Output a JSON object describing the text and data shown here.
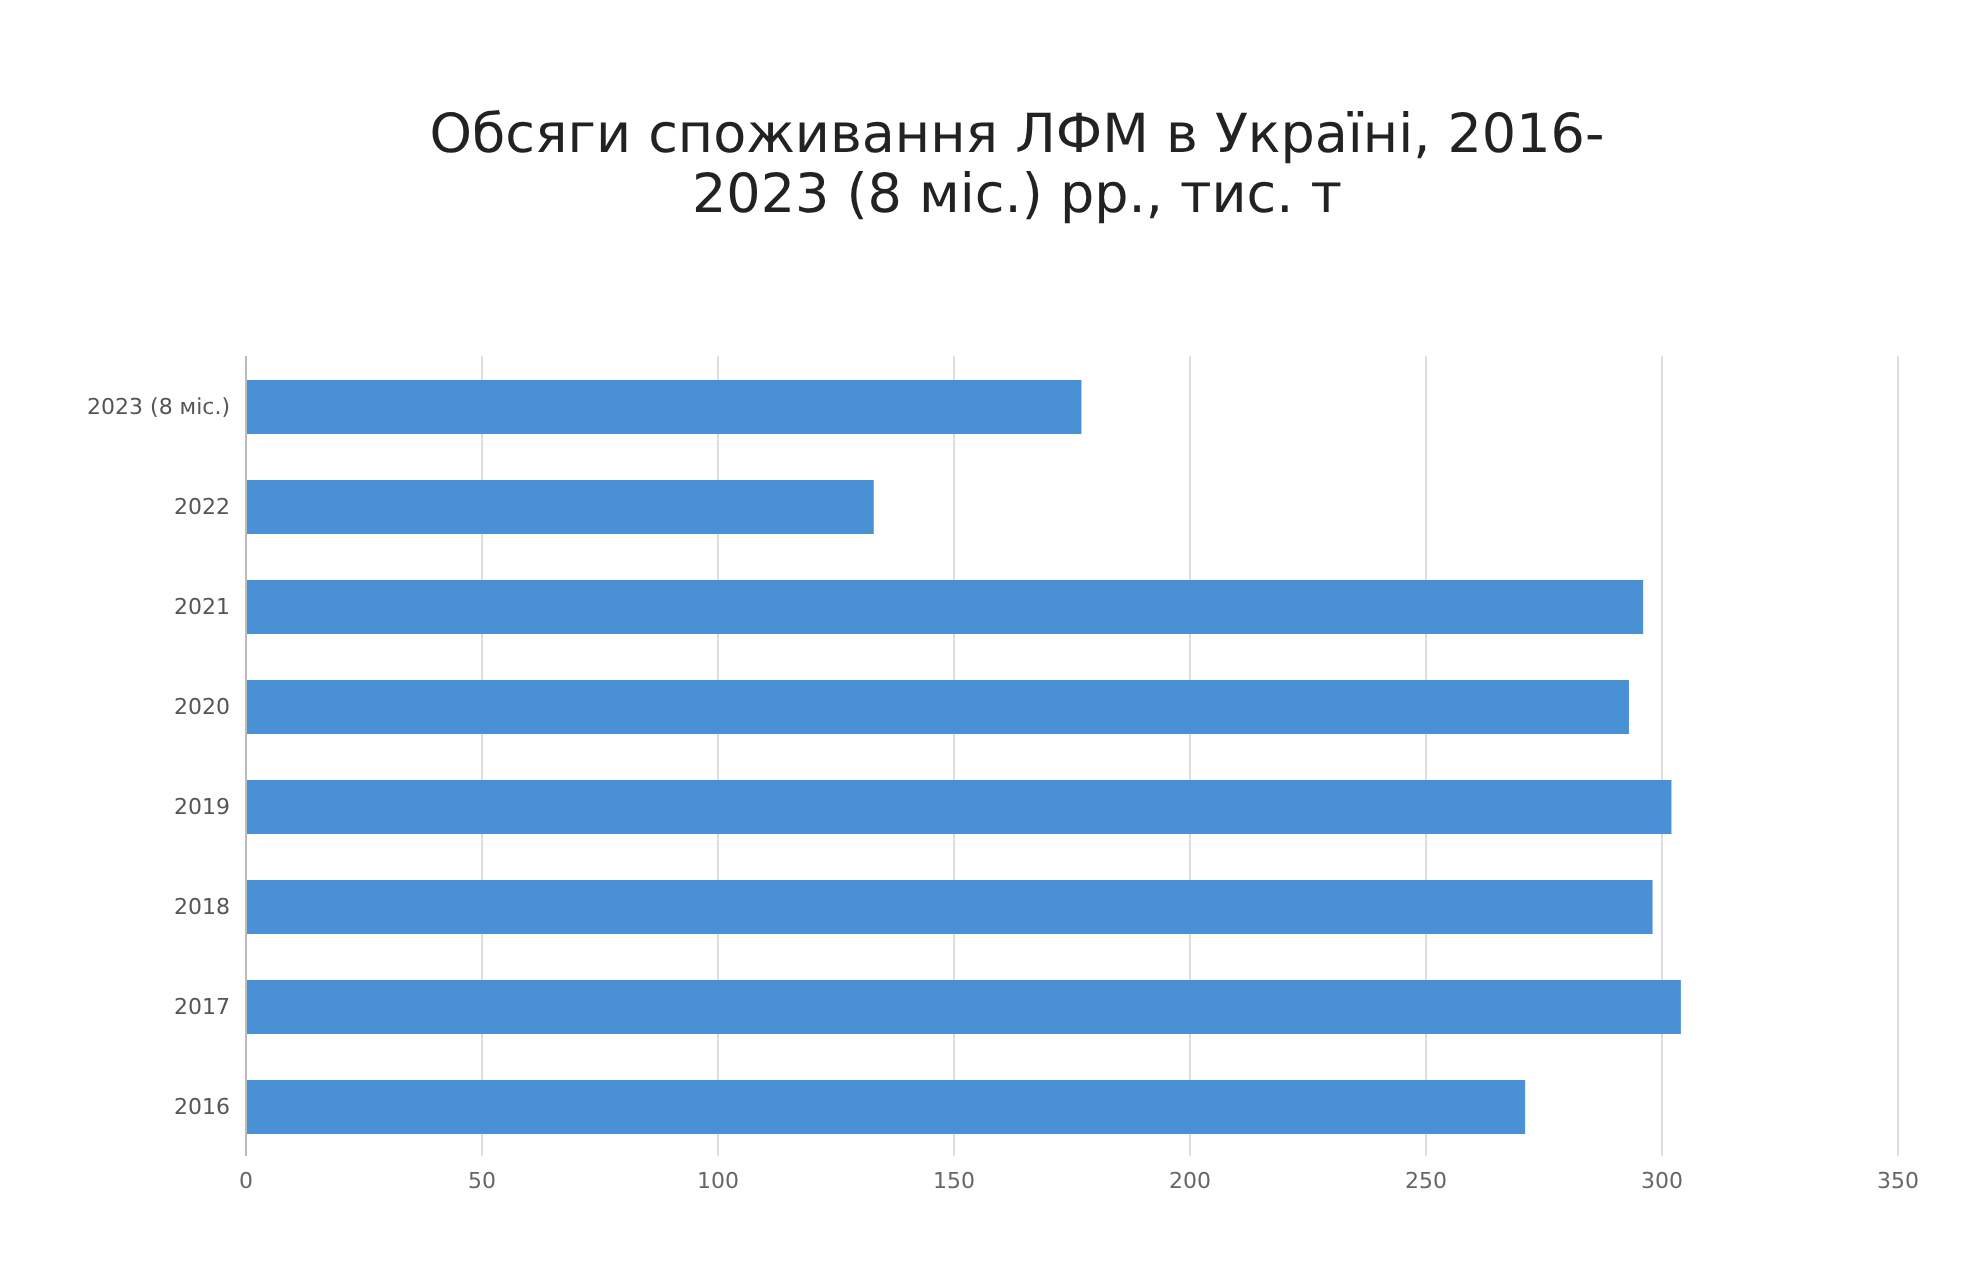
{
  "chart_data": {
    "type": "bar",
    "orientation": "horizontal",
    "title": "Обсяги споживання ЛФМ в Україні, 2016-2023 (8 міс.) рр., тис. т",
    "categories": [
      "2023 (8 міс.)",
      "2022",
      "2021",
      "2020",
      "2019",
      "2018",
      "2017",
      "2016"
    ],
    "values": [
      177,
      133,
      296,
      293,
      302,
      298,
      304,
      271
    ],
    "color": "#4a90d4",
    "xlim": [
      0,
      350
    ],
    "xticks": [
      0,
      50,
      100,
      150,
      200,
      250,
      300,
      350
    ],
    "grid": "x"
  }
}
